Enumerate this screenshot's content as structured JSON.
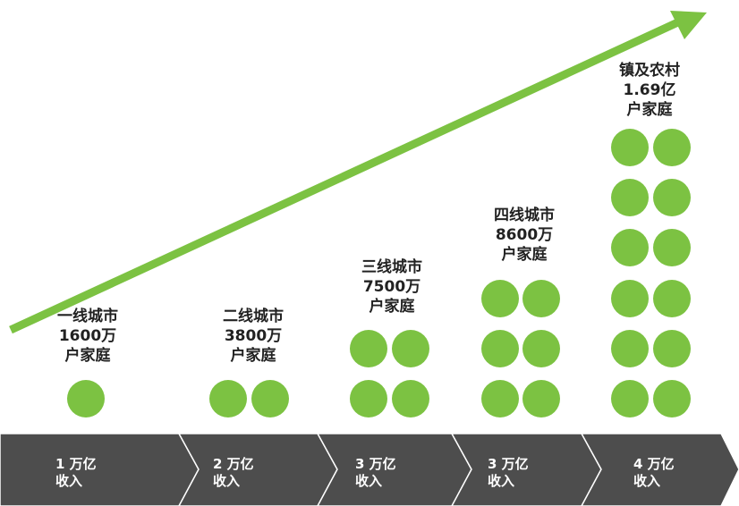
{
  "accent_color": "#7cc242",
  "band_color": "#4d4d4d",
  "tiers": [
    {
      "name": "一线城市",
      "value": "1600万",
      "unit": "户家庭",
      "circles": 1,
      "income": "1 万亿",
      "income_unit": "收入"
    },
    {
      "name": "二线城市",
      "value": "3800万",
      "unit": "户家庭",
      "circles": 2,
      "income": "2 万亿",
      "income_unit": "收入"
    },
    {
      "name": "三线城市",
      "value": "7500万",
      "unit": "户家庭",
      "circles": 4,
      "income": "3 万亿",
      "income_unit": "收入"
    },
    {
      "name": "四线城市",
      "value": "8600万",
      "unit": "户家庭",
      "circles": 6,
      "income": "3 万亿",
      "income_unit": "收入"
    },
    {
      "name": "镇及农村",
      "value": "1.69亿",
      "unit": "户家庭",
      "circles": 12,
      "income": "4 万亿",
      "income_unit": "收入"
    }
  ]
}
